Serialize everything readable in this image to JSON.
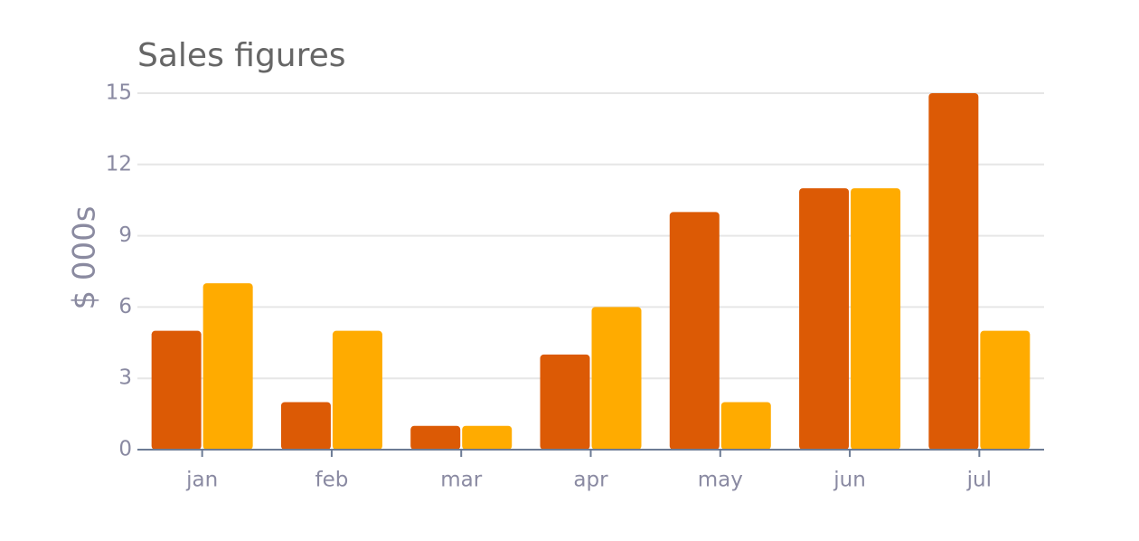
{
  "chart_data": {
    "type": "bar",
    "title": "Sales figures",
    "y_label": "$ 000s",
    "categories": [
      "jan",
      "feb",
      "mar",
      "apr",
      "may",
      "jun",
      "jul"
    ],
    "series": [
      {
        "color": "#dc5a05",
        "values": [
          5,
          2,
          1,
          4,
          10,
          11,
          15
        ]
      },
      {
        "color": "#ffab00",
        "values": [
          7,
          5,
          1,
          6,
          2,
          11,
          5
        ]
      }
    ],
    "ylim": [
      0,
      15
    ],
    "yticks": [
      0,
      3,
      6,
      9,
      12,
      15
    ],
    "grid": true
  }
}
